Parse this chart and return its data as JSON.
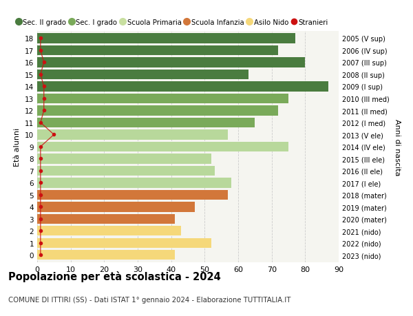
{
  "ages": [
    18,
    17,
    16,
    15,
    14,
    13,
    12,
    11,
    10,
    9,
    8,
    7,
    6,
    5,
    4,
    3,
    2,
    1,
    0
  ],
  "values": [
    77,
    72,
    80,
    63,
    87,
    75,
    72,
    65,
    57,
    75,
    52,
    53,
    58,
    57,
    47,
    41,
    43,
    52,
    41
  ],
  "stranieri": [
    1,
    1,
    2,
    1,
    2,
    2,
    2,
    1,
    5,
    1,
    1,
    1,
    1,
    1,
    1,
    1,
    1,
    1,
    1
  ],
  "right_labels": [
    "2005 (V sup)",
    "2006 (IV sup)",
    "2007 (III sup)",
    "2008 (II sup)",
    "2009 (I sup)",
    "2010 (III med)",
    "2011 (II med)",
    "2012 (I med)",
    "2013 (V ele)",
    "2014 (IV ele)",
    "2015 (III ele)",
    "2016 (II ele)",
    "2017 (I ele)",
    "2018 (mater)",
    "2019 (mater)",
    "2020 (mater)",
    "2021 (nido)",
    "2022 (nido)",
    "2023 (nido)"
  ],
  "bar_colors": [
    "#4a7c3f",
    "#4a7c3f",
    "#4a7c3f",
    "#4a7c3f",
    "#4a7c3f",
    "#7aaa5a",
    "#7aaa5a",
    "#7aaa5a",
    "#b8d89b",
    "#b8d89b",
    "#b8d89b",
    "#b8d89b",
    "#b8d89b",
    "#d2773a",
    "#d2773a",
    "#d2773a",
    "#f5d87a",
    "#f5d87a",
    "#f5d87a"
  ],
  "legend_labels": [
    "Sec. II grado",
    "Sec. I grado",
    "Scuola Primaria",
    "Scuola Infanzia",
    "Asilo Nido",
    "Stranieri"
  ],
  "legend_colors": [
    "#4a7c3f",
    "#7aaa5a",
    "#c8dfa0",
    "#d2773a",
    "#f5d87a",
    "#cc1111"
  ],
  "stranieri_color": "#cc1111",
  "title": "Popolazione per età scolastica - 2024",
  "subtitle": "COMUNE DI ITTIRI (SS) - Dati ISTAT 1° gennaio 2024 - Elaborazione TUTTITALIA.IT",
  "ylabel_left": "Età alunni",
  "ylabel_right": "Anni di nascita",
  "xlim": [
    0,
    90
  ],
  "xticks": [
    0,
    10,
    20,
    30,
    40,
    50,
    60,
    70,
    80,
    90
  ],
  "background_color": "#f5f5f0",
  "grid_color": "#cccccc"
}
